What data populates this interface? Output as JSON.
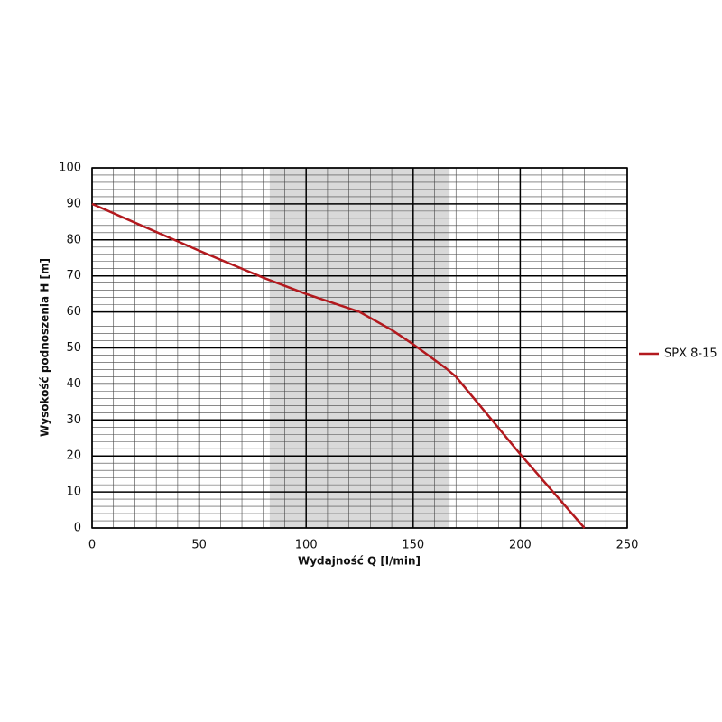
{
  "chart_data": {
    "type": "line",
    "x_label": "Wydajność Q [l/min]",
    "y_label": "Wysokość podnoszenia H [m]",
    "x": [
      0,
      50,
      80,
      100,
      125,
      140,
      150,
      165,
      170,
      200,
      230
    ],
    "series": [
      {
        "name": "SPX 8-15",
        "color": "#b3191e",
        "values": [
          90,
          77,
          69.5,
          65,
          60,
          55,
          51,
          44.5,
          42,
          20.5,
          0
        ]
      }
    ],
    "xlim": [
      0,
      250
    ],
    "xticks": [
      0,
      50,
      100,
      150,
      200,
      250
    ],
    "ylim": [
      0,
      100
    ],
    "yticks": [
      0,
      10,
      20,
      30,
      40,
      50,
      60,
      70,
      80,
      90,
      100
    ],
    "grid": true,
    "minor_grid": {
      "x": 10,
      "y": 2
    },
    "shaded_range": [
      83,
      167
    ],
    "shaded_color": "#d9d9d9",
    "legend": "right"
  }
}
